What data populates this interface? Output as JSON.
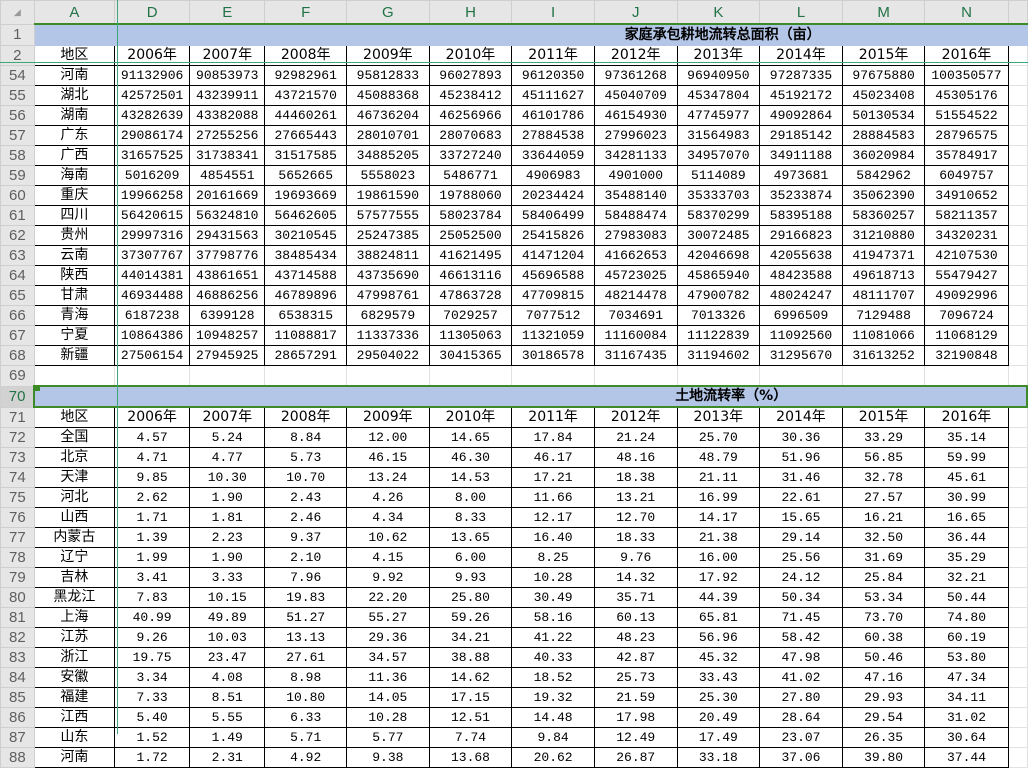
{
  "column_headers": [
    "A",
    "D",
    "E",
    "F",
    "G",
    "H",
    "I",
    "J",
    "K",
    "L",
    "M",
    "N",
    ""
  ],
  "years": [
    "2006年",
    "2007年",
    "2008年",
    "2009年",
    "2010年",
    "2011年",
    "2012年",
    "2013年",
    "2014年",
    "2015年",
    "2016年"
  ],
  "area_table": {
    "title_row": "1",
    "title": "家庭承包耕地流转总面积（亩）",
    "header_row": "2",
    "region_label": "地区",
    "rows": [
      {
        "row": "54",
        "region": "河南",
        "values": [
          "91132906",
          "90853973",
          "92982961",
          "95812833",
          "96027893",
          "96120350",
          "97361268",
          "96940950",
          "97287335",
          "97675880",
          "100350577"
        ]
      },
      {
        "row": "55",
        "region": "湖北",
        "values": [
          "42572501",
          "43239911",
          "43721570",
          "45088368",
          "45238412",
          "45111627",
          "45040709",
          "45347804",
          "45192172",
          "45023408",
          "45305176"
        ]
      },
      {
        "row": "56",
        "region": "湖南",
        "values": [
          "43282639",
          "43382088",
          "44460261",
          "46736204",
          "46256966",
          "46101786",
          "46154930",
          "47745977",
          "49092864",
          "50130534",
          "51554522"
        ]
      },
      {
        "row": "57",
        "region": "广东",
        "values": [
          "29086174",
          "27255256",
          "27665443",
          "28010701",
          "28070683",
          "27884538",
          "27996023",
          "31564983",
          "29185142",
          "28884583",
          "28796575"
        ]
      },
      {
        "row": "58",
        "region": "广西",
        "values": [
          "31657525",
          "31738341",
          "31517585",
          "34885205",
          "33727240",
          "33644059",
          "34281133",
          "34957070",
          "34911188",
          "36020984",
          "35784917"
        ]
      },
      {
        "row": "59",
        "region": "海南",
        "values": [
          "5016209",
          "4854551",
          "5652665",
          "5558023",
          "5486771",
          "4906983",
          "4901000",
          "5114089",
          "4973681",
          "5842962",
          "6049757"
        ]
      },
      {
        "row": "60",
        "region": "重庆",
        "values": [
          "19966258",
          "20161669",
          "19693669",
          "19861590",
          "19788060",
          "20234424",
          "35488140",
          "35333703",
          "35233874",
          "35062390",
          "34910652"
        ]
      },
      {
        "row": "61",
        "region": "四川",
        "values": [
          "56420615",
          "56324810",
          "56462605",
          "57577555",
          "58023784",
          "58406499",
          "58488474",
          "58370299",
          "58395188",
          "58360257",
          "58211357"
        ]
      },
      {
        "row": "62",
        "region": "贵州",
        "values": [
          "29997316",
          "29431563",
          "30210545",
          "25247385",
          "25052500",
          "25415826",
          "27983083",
          "30072485",
          "29166823",
          "31210880",
          "34320231"
        ]
      },
      {
        "row": "63",
        "region": "云南",
        "values": [
          "37307767",
          "37798776",
          "38485434",
          "38824811",
          "41621495",
          "41471204",
          "41662653",
          "42046698",
          "42055638",
          "41947371",
          "42107530"
        ]
      },
      {
        "row": "64",
        "region": "陕西",
        "values": [
          "44014381",
          "43861651",
          "43714588",
          "43735690",
          "46613116",
          "45696588",
          "45723025",
          "45865940",
          "48423588",
          "49618713",
          "55479427"
        ]
      },
      {
        "row": "65",
        "region": "甘肃",
        "values": [
          "46934488",
          "46886256",
          "46789896",
          "47998761",
          "47863728",
          "47709815",
          "48214478",
          "47900782",
          "48024247",
          "48111707",
          "49092996"
        ]
      },
      {
        "row": "66",
        "region": "青海",
        "values": [
          "6187238",
          "6399128",
          "6538315",
          "6829579",
          "7029257",
          "7077512",
          "7034691",
          "7013326",
          "6996509",
          "7129488",
          "7096724"
        ]
      },
      {
        "row": "67",
        "region": "宁夏",
        "values": [
          "10864386",
          "10948257",
          "11088817",
          "11337336",
          "11305063",
          "11321059",
          "11160084",
          "11122839",
          "11092560",
          "11081066",
          "11068129"
        ]
      },
      {
        "row": "68",
        "region": "新疆",
        "values": [
          "27506154",
          "27945925",
          "28657291",
          "29504022",
          "30415365",
          "30186578",
          "31167435",
          "31194602",
          "31295670",
          "31613252",
          "32190848"
        ]
      }
    ]
  },
  "empty_row": "69",
  "rate_table": {
    "title_row": "70",
    "title": "土地流转率（%）",
    "header_row": "71",
    "region_label": "地区",
    "rows": [
      {
        "row": "72",
        "region": "全国",
        "values": [
          "4.57",
          "5.24",
          "8.84",
          "12.00",
          "14.65",
          "17.84",
          "21.24",
          "25.70",
          "30.36",
          "33.29",
          "35.14"
        ]
      },
      {
        "row": "73",
        "region": "北京",
        "values": [
          "4.71",
          "4.77",
          "5.73",
          "46.15",
          "46.30",
          "46.17",
          "48.16",
          "48.79",
          "51.96",
          "56.85",
          "59.99"
        ]
      },
      {
        "row": "74",
        "region": "天津",
        "values": [
          "9.85",
          "10.30",
          "10.70",
          "13.24",
          "14.53",
          "17.21",
          "18.38",
          "21.11",
          "31.46",
          "32.78",
          "45.61"
        ]
      },
      {
        "row": "75",
        "region": "河北",
        "values": [
          "2.62",
          "1.90",
          "2.43",
          "4.26",
          "8.00",
          "11.66",
          "13.21",
          "16.99",
          "22.61",
          "27.57",
          "30.99"
        ]
      },
      {
        "row": "76",
        "region": "山西",
        "values": [
          "1.71",
          "1.81",
          "2.46",
          "4.34",
          "8.33",
          "12.17",
          "12.70",
          "14.17",
          "15.65",
          "16.21",
          "16.65"
        ]
      },
      {
        "row": "77",
        "region": "内蒙古",
        "values": [
          "1.39",
          "2.23",
          "9.37",
          "10.62",
          "13.65",
          "16.40",
          "18.33",
          "21.38",
          "29.14",
          "32.50",
          "36.44"
        ]
      },
      {
        "row": "78",
        "region": "辽宁",
        "values": [
          "1.99",
          "1.90",
          "2.10",
          "4.15",
          "6.00",
          "8.25",
          "9.76",
          "16.00",
          "25.56",
          "31.69",
          "35.29"
        ]
      },
      {
        "row": "79",
        "region": "吉林",
        "values": [
          "3.41",
          "3.33",
          "7.96",
          "9.92",
          "9.93",
          "10.28",
          "14.32",
          "17.92",
          "24.12",
          "25.84",
          "32.21"
        ]
      },
      {
        "row": "80",
        "region": "黑龙江",
        "values": [
          "7.83",
          "10.15",
          "19.83",
          "22.20",
          "25.80",
          "30.49",
          "35.71",
          "44.39",
          "50.34",
          "53.34",
          "50.44"
        ]
      },
      {
        "row": "81",
        "region": "上海",
        "values": [
          "40.99",
          "49.89",
          "51.27",
          "55.27",
          "59.26",
          "58.16",
          "60.13",
          "65.81",
          "71.45",
          "73.70",
          "74.80"
        ]
      },
      {
        "row": "82",
        "region": "江苏",
        "values": [
          "9.26",
          "10.03",
          "13.13",
          "29.36",
          "34.21",
          "41.22",
          "48.23",
          "56.96",
          "58.42",
          "60.38",
          "60.19"
        ]
      },
      {
        "row": "83",
        "region": "浙江",
        "values": [
          "19.75",
          "23.47",
          "27.61",
          "34.57",
          "38.88",
          "40.33",
          "42.87",
          "45.32",
          "47.98",
          "50.46",
          "53.80"
        ]
      },
      {
        "row": "84",
        "region": "安徽",
        "values": [
          "3.34",
          "4.08",
          "8.98",
          "11.36",
          "14.62",
          "18.52",
          "25.73",
          "33.43",
          "41.02",
          "47.16",
          "47.34"
        ]
      },
      {
        "row": "85",
        "region": "福建",
        "values": [
          "7.33",
          "8.51",
          "10.80",
          "14.05",
          "17.15",
          "19.32",
          "21.59",
          "25.30",
          "27.80",
          "29.93",
          "34.11"
        ]
      },
      {
        "row": "86",
        "region": "江西",
        "values": [
          "5.40",
          "5.55",
          "6.33",
          "10.28",
          "12.51",
          "14.48",
          "17.98",
          "20.49",
          "28.64",
          "29.54",
          "31.02"
        ]
      },
      {
        "row": "87",
        "region": "山东",
        "values": [
          "1.52",
          "1.49",
          "5.71",
          "5.77",
          "7.74",
          "9.84",
          "12.49",
          "17.49",
          "23.07",
          "26.35",
          "30.64"
        ]
      },
      {
        "row": "88",
        "region": "河南",
        "values": [
          "1.72",
          "2.31",
          "4.92",
          "9.38",
          "13.68",
          "20.62",
          "26.87",
          "33.18",
          "37.06",
          "39.80",
          "37.44"
        ]
      }
    ]
  },
  "colors": {
    "title_fill": "#b4c6e7",
    "selection": "#3c8a28",
    "header_bg": "#e6e6e6"
  }
}
